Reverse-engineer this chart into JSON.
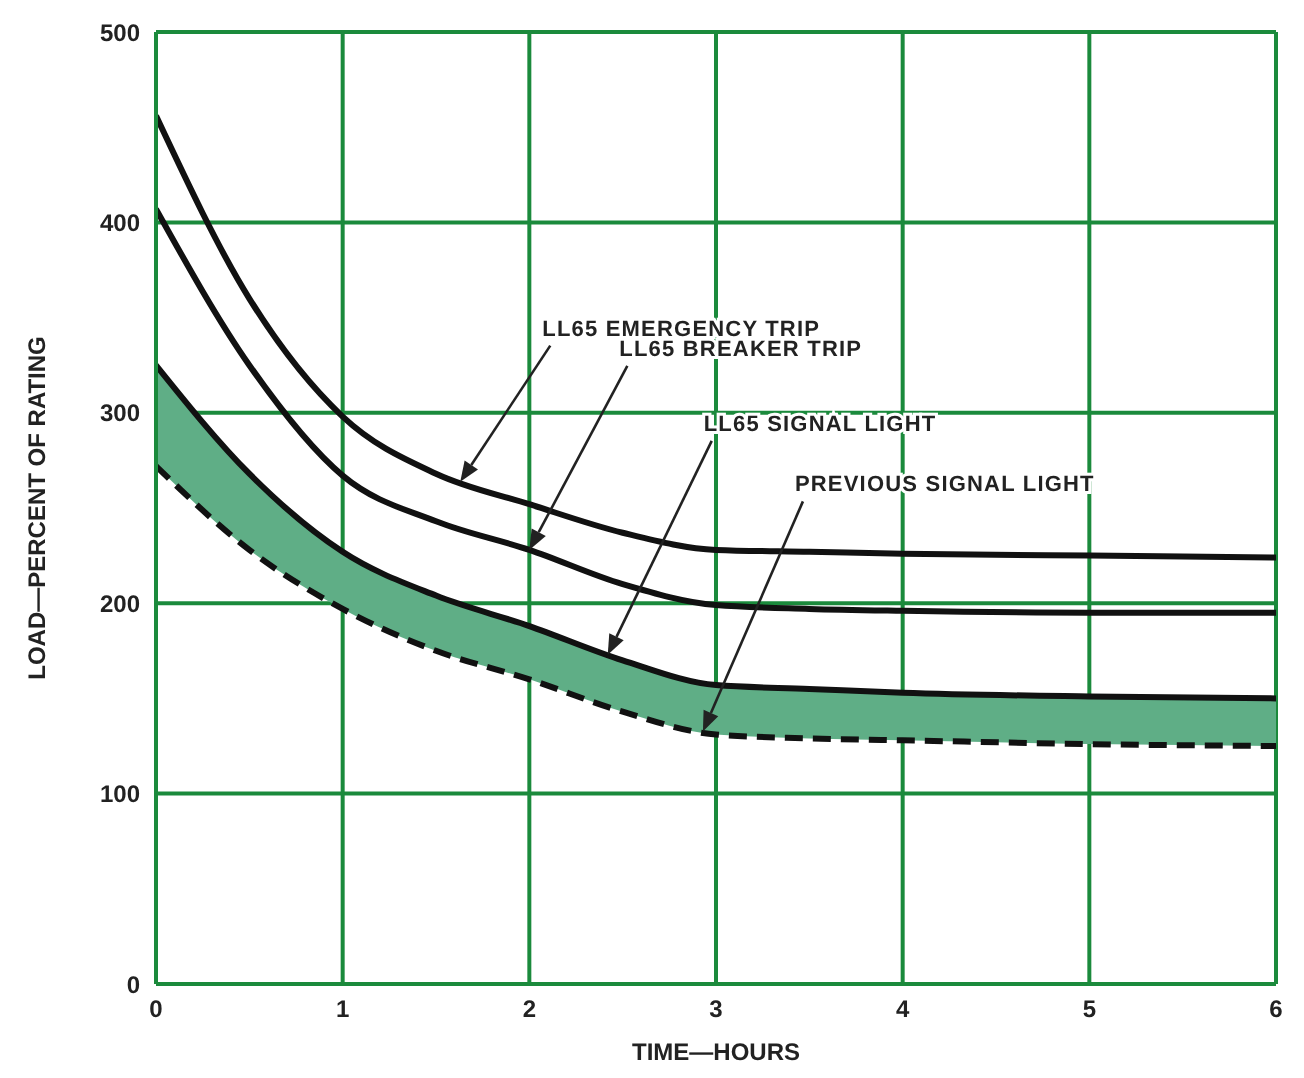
{
  "chart_data": {
    "type": "line",
    "xlabel": "TIME—HOURS",
    "ylabel": "LOAD—PERCENT OF RATING",
    "x": [
      0,
      0.5,
      1,
      1.5,
      2,
      2.5,
      3,
      3.5,
      4,
      5,
      6
    ],
    "series": [
      {
        "color": "#111111",
        "values": [
          456,
          360,
          298,
          268,
          252,
          237,
          228,
          227,
          226,
          225,
          224
        ]
      },
      {
        "color": "#111111",
        "values": [
          407,
          325,
          267,
          243,
          228,
          210,
          199,
          197,
          196,
          195,
          195
        ]
      },
      {
        "color": "#111111",
        "values": [
          325,
          268,
          227,
          204,
          188,
          170,
          157,
          155,
          153,
          151,
          150
        ],
        "lower": [
          272,
          228,
          197,
          175,
          160,
          143,
          131,
          129,
          128,
          126,
          125
        ],
        "upper": [
          325,
          268,
          227,
          204,
          188,
          170,
          157,
          155,
          153,
          151,
          150
        ]
      },
      {
        "color": "#111111",
        "line_style": "dashed",
        "values": [
          272,
          228,
          197,
          175,
          160,
          143,
          131,
          129,
          128,
          126,
          125
        ]
      }
    ],
    "xlim": [
      0,
      6
    ],
    "xticks": [
      0,
      1,
      2,
      3,
      4,
      5,
      6
    ],
    "ylim": [
      0,
      500
    ],
    "yticks": [
      0,
      100,
      200,
      300,
      400,
      500
    ],
    "grid": true,
    "marker": "none",
    "line_style": "solid",
    "annotations": [
      "LL65 EMERGENCY TRIP",
      "LL65 BREAKER TRIP",
      "LL65 SIGNAL LIGHT",
      "PREVIOUS SIGNAL LIGHT"
    ]
  }
}
